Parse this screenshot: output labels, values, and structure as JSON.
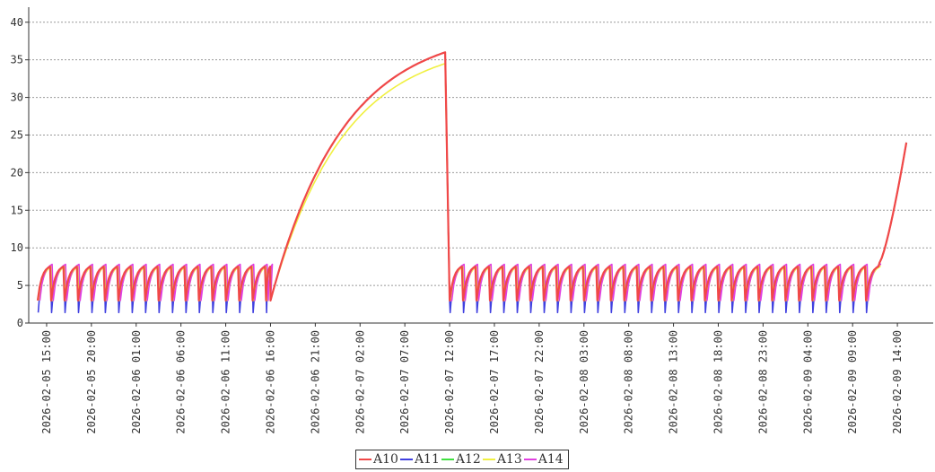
{
  "chart_data": {
    "type": "line",
    "title": "",
    "xlabel": "",
    "ylabel": "",
    "x_range": [
      "2026-02-05 13:00",
      "2026-02-09 18:00"
    ],
    "ylim": [
      0,
      42
    ],
    "y_ticks": [
      0,
      5,
      10,
      15,
      20,
      25,
      30,
      35,
      40
    ],
    "x_ticks": [
      "2026-02-05 15:00",
      "2026-02-05 20:00",
      "2026-02-06 01:00",
      "2026-02-06 06:00",
      "2026-02-06 11:00",
      "2026-02-06 16:00",
      "2026-02-06 21:00",
      "2026-02-07 02:00",
      "2026-02-07 07:00",
      "2026-02-07 12:00",
      "2026-02-07 17:00",
      "2026-02-07 22:00",
      "2026-02-08 03:00",
      "2026-02-08 08:00",
      "2026-02-08 13:00",
      "2026-02-08 18:00",
      "2026-02-08 23:00",
      "2026-02-09 04:00",
      "2026-02-09 09:00",
      "2026-02-09 14:00"
    ],
    "grid": "horizontal dashed",
    "legend_position": "bottom",
    "series": [
      {
        "name": "A10",
        "color": "#f04848"
      },
      {
        "name": "A11",
        "color": "#4040e0"
      },
      {
        "name": "A12",
        "color": "#40e040"
      },
      {
        "name": "A13",
        "color": "#f0f040"
      },
      {
        "name": "A14",
        "color": "#e040e0"
      }
    ],
    "pattern": {
      "sawtooth_period_hours": 1.5,
      "sawtooth_low": 3,
      "sawtooth_high": 7.5,
      "segment_1": {
        "start": "2026-02-05 14:00",
        "end": "2026-02-06 16:00"
      },
      "rise": {
        "start": "2026-02-06 16:00",
        "end": "2026-02-07 11:30",
        "from": 3,
        "to": 36
      },
      "drop": {
        "at": "2026-02-07 12:00",
        "to": 3
      },
      "segment_2": {
        "start": "2026-02-07 12:00",
        "end": "2026-02-09 12:00"
      },
      "final_rise": {
        "start": "2026-02-09 12:00",
        "end": "2026-02-09 15:00",
        "from": 8,
        "to": 24
      }
    }
  }
}
